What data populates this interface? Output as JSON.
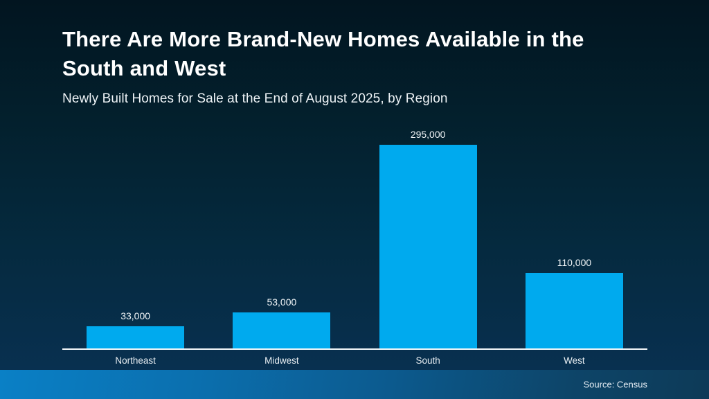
{
  "header": {
    "title": "There Are More Brand-New Homes Available in the South and West",
    "subtitle": "Newly Built Homes for Sale at the End of August 2025, by Region"
  },
  "chart_data": {
    "type": "bar",
    "title": "There Are More Brand-New Homes Available in the South and West",
    "subtitle": "Newly Built Homes for Sale at the End of August 2025, by Region",
    "categories": [
      "Northeast",
      "Midwest",
      "South",
      "West"
    ],
    "values": [
      33000,
      53000,
      295000,
      110000
    ],
    "value_labels": [
      "33,000",
      "53,000",
      "295,000",
      "110,000"
    ],
    "xlabel": "",
    "ylabel": "",
    "ylim": [
      0,
      300000
    ],
    "grid": false,
    "legend": false,
    "bar_color": "#00aaee",
    "axis_line_color": "#f5f8fa",
    "label_color": "#f2f6f8"
  },
  "footer": {
    "source_label": "Source: Census"
  },
  "colors": {
    "background_top": "#021520",
    "background_bottom": "#093252",
    "footer_gradient_left": "#0a80c6",
    "footer_gradient_right": "#0d3a57",
    "title_text": "#ffffff"
  }
}
